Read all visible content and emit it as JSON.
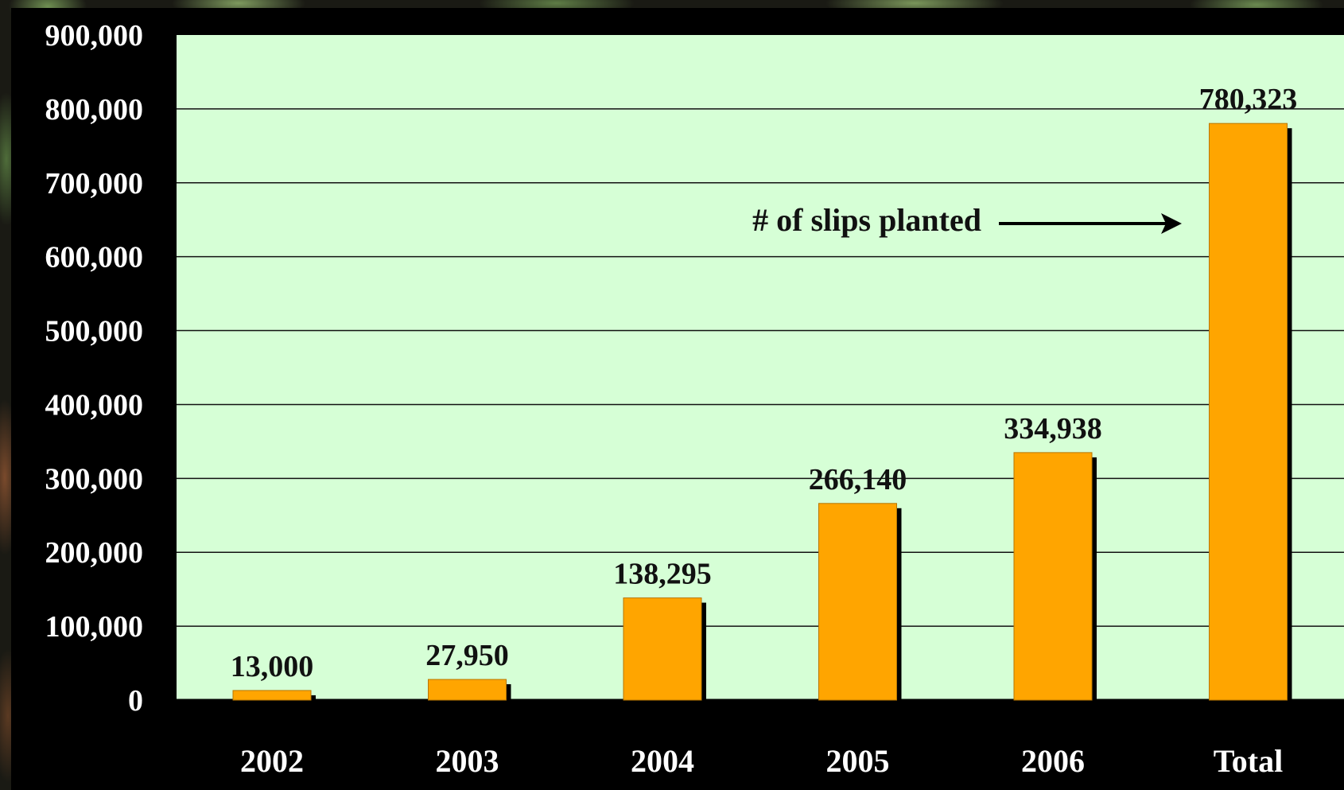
{
  "chart_data": {
    "type": "bar",
    "categories": [
      "2002",
      "2003",
      "2004",
      "2005",
      "2006",
      "Total"
    ],
    "series": [
      {
        "values": [
          13000,
          27950,
          138295,
          266140,
          334938,
          780323
        ]
      }
    ],
    "data_labels": [
      "13,000",
      "27,950",
      "138,295",
      "266,140",
      "334,938",
      "780,323"
    ],
    "ylim": [
      0,
      900000
    ],
    "yticks": [
      0,
      100000,
      200000,
      300000,
      400000,
      500000,
      600000,
      700000,
      800000,
      900000
    ],
    "ytick_labels": [
      "0",
      "100,000",
      "200,000",
      "300,000",
      "400,000",
      "500,000",
      "600,000",
      "700,000",
      "800,000",
      "900,000"
    ],
    "grid": true,
    "annotation": {
      "text": "# of slips planted",
      "points_to": "Total"
    },
    "colors": {
      "bar": "#FFA500",
      "bar_shadow": "#000000",
      "plot_background": "#D6FFD6",
      "gridline": "#111111",
      "frame": "#000000"
    }
  }
}
